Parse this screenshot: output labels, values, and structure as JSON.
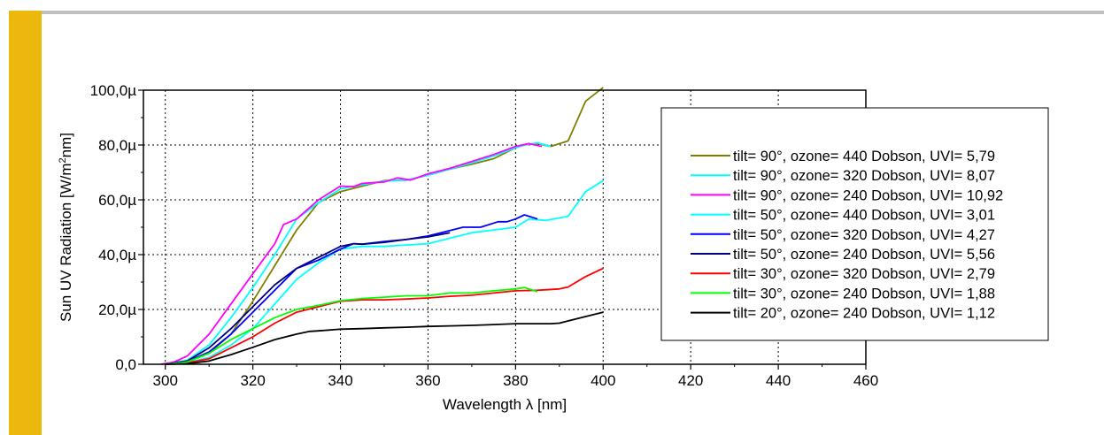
{
  "colors": {
    "accent_bar": "#EDB80C",
    "top_rule": "#BEBEBE"
  },
  "chart_data": {
    "type": "line",
    "xlabel": "Wavelength λ [nm]",
    "ylabel_prefix": "Sun UV Radiation [W/m",
    "ylabel_sup": "2",
    "ylabel_suffix": "nm]",
    "xlim": [
      295,
      460
    ],
    "ylim": [
      0,
      0.0001
    ],
    "xticks": [
      {
        "v": 300,
        "label": "300"
      },
      {
        "v": 320,
        "label": "320"
      },
      {
        "v": 340,
        "label": "340"
      },
      {
        "v": 360,
        "label": "360"
      },
      {
        "v": 380,
        "label": "380"
      },
      {
        "v": 400,
        "label": "400"
      },
      {
        "v": 420,
        "label": "420"
      },
      {
        "v": 440,
        "label": "440"
      },
      {
        "v": 460,
        "label": "460"
      }
    ],
    "yticks": [
      {
        "v": 0,
        "label": "0,0"
      },
      {
        "v": 2e-05,
        "label": "20,0µ"
      },
      {
        "v": 4e-05,
        "label": "40,0µ"
      },
      {
        "v": 6e-05,
        "label": "60,0µ"
      },
      {
        "v": 8e-05,
        "label": "80,0µ"
      },
      {
        "v": 0.0001,
        "label": "100,0µ"
      }
    ],
    "grid": true,
    "legend_position": "right",
    "series": [
      {
        "name": "tilt= 90°, ozone= 440 Dobson, UVI= 5,79",
        "color": "#808000",
        "x": [
          300,
          305,
          310,
          315,
          320,
          325,
          330,
          335,
          340,
          345,
          350,
          355,
          360,
          365,
          370,
          375,
          380,
          382,
          385,
          388,
          392,
          396,
          400
        ],
        "y": [
          0,
          8e-07,
          4e-06,
          1.1e-05,
          2.3e-05,
          3.6e-05,
          4.9e-05,
          5.9e-05,
          6.3e-05,
          6.5e-05,
          6.7e-05,
          6.72e-05,
          6.9e-05,
          7.12e-05,
          7.3e-05,
          7.5e-05,
          7.9e-05,
          8e-05,
          8.05e-05,
          7.95e-05,
          8.15e-05,
          9.6e-05,
          0.000101
        ]
      },
      {
        "name": "tilt= 90°, ozone= 320 Dobson, UVI= 8,07",
        "color": "#00FFFF",
        "x": [
          300,
          305,
          310,
          315,
          320,
          325,
          330,
          335,
          340,
          345,
          350,
          355,
          360,
          365,
          370,
          375,
          380,
          382,
          385,
          388
        ],
        "y": [
          0,
          1.5e-06,
          7e-06,
          1.7e-05,
          2.8e-05,
          4e-05,
          5.3e-05,
          5.9e-05,
          6.4e-05,
          6.55e-05,
          6.68e-05,
          6.72e-05,
          6.9e-05,
          7.12e-05,
          7.35e-05,
          7.6e-05,
          7.9e-05,
          8e-05,
          8.08e-05,
          7.95e-05
        ]
      },
      {
        "name": "tilt= 90°, ozone= 240 Dobson, UVI= 10,92",
        "color": "#FF00FF",
        "x": [
          299,
          302,
          305,
          310,
          315,
          320,
          325,
          327,
          330,
          335,
          340,
          343,
          345,
          350,
          353,
          356,
          360,
          365,
          370,
          375,
          380,
          383,
          386
        ],
        "y": [
          0,
          8e-07,
          3e-06,
          1.1e-05,
          2.2e-05,
          3.3e-05,
          4.4e-05,
          5.1e-05,
          5.3e-05,
          6e-05,
          6.5e-05,
          6.48e-05,
          6.6e-05,
          6.65e-05,
          6.8e-05,
          6.72e-05,
          6.95e-05,
          7.15e-05,
          7.4e-05,
          7.65e-05,
          7.95e-05,
          8.05e-05,
          7.95e-05
        ]
      },
      {
        "name": "tilt= 50°, ozone= 440 Dobson, UVI= 3,01",
        "color": "#00FFFF",
        "x": [
          300,
          305,
          310,
          315,
          320,
          325,
          330,
          335,
          340,
          345,
          350,
          355,
          360,
          365,
          370,
          375,
          380,
          383,
          387,
          392,
          396,
          400
        ],
        "y": [
          0,
          5e-07,
          2.5e-06,
          7e-06,
          1.3e-05,
          2.2e-05,
          3.1e-05,
          3.7e-05,
          4.2e-05,
          4.3e-05,
          4.3e-05,
          4.35e-05,
          4.4e-05,
          4.6e-05,
          4.8e-05,
          4.9e-05,
          5e-05,
          5.3e-05,
          5.25e-05,
          5.4e-05,
          6.3e-05,
          6.7e-05
        ]
      },
      {
        "name": "tilt= 50°, ozone= 320 Dobson, UVI= 4,27",
        "color": "#0000FF",
        "x": [
          300,
          305,
          310,
          315,
          320,
          325,
          330,
          335,
          340,
          343,
          345,
          350,
          355,
          360,
          365,
          368,
          372,
          376,
          378,
          380,
          382,
          385
        ],
        "y": [
          0,
          1e-06,
          4.5e-06,
          1.1e-05,
          1.9e-05,
          2.7e-05,
          3.5e-05,
          3.8e-05,
          4.2e-05,
          4.4e-05,
          4.38e-05,
          4.48e-05,
          4.55e-05,
          4.68e-05,
          4.88e-05,
          5e-05,
          5e-05,
          5.2e-05,
          5.2e-05,
          5.3e-05,
          5.45e-05,
          5.3e-05
        ]
      },
      {
        "name": "tilt= 50°, ozone= 240 Dobson, UVI= 5,56",
        "color": "#000080",
        "x": [
          300,
          305,
          310,
          315,
          320,
          325,
          330,
          335,
          340,
          343,
          345,
          350,
          355,
          360,
          365
        ],
        "y": [
          0,
          1.2e-06,
          6e-06,
          1.3e-05,
          2.1e-05,
          2.9e-05,
          3.5e-05,
          3.9e-05,
          4.3e-05,
          4.4e-05,
          4.38e-05,
          4.45e-05,
          4.55e-05,
          4.65e-05,
          4.8e-05
        ]
      },
      {
        "name": "tilt= 30°, ozone= 320 Dobson, UVI= 2,79",
        "color": "#FF0000",
        "x": [
          300,
          305,
          310,
          315,
          320,
          325,
          330,
          335,
          340,
          345,
          350,
          355,
          360,
          365,
          370,
          375,
          380,
          385,
          390,
          392,
          396,
          400
        ],
        "y": [
          0,
          5e-07,
          2e-06,
          6e-06,
          1e-05,
          1.5e-05,
          1.9e-05,
          2.1e-05,
          2.3e-05,
          2.35e-05,
          2.35e-05,
          2.38e-05,
          2.42e-05,
          2.48e-05,
          2.52e-05,
          2.6e-05,
          2.68e-05,
          2.7e-05,
          2.75e-05,
          2.82e-05,
          3.2e-05,
          3.5e-05
        ]
      },
      {
        "name": "tilt= 30°, ozone= 240 Dobson, UVI= 1,88",
        "color": "#00FF00",
        "x": [
          300,
          305,
          310,
          315,
          320,
          325,
          330,
          335,
          340,
          345,
          350,
          355,
          360,
          365,
          370,
          375,
          380,
          382,
          385
        ],
        "y": [
          0,
          8e-07,
          4e-06,
          9e-06,
          1.3e-05,
          1.7e-05,
          2e-05,
          2.15e-05,
          2.32e-05,
          2.4e-05,
          2.45e-05,
          2.5e-05,
          2.5e-05,
          2.6e-05,
          2.6e-05,
          2.68e-05,
          2.75e-05,
          2.8e-05,
          2.65e-05
        ]
      },
      {
        "name": "tilt= 20°, ozone= 240 Dobson, UVI= 1,12",
        "color": "#000000",
        "x": [
          300,
          305,
          310,
          315,
          320,
          325,
          330,
          333,
          335,
          340,
          345,
          350,
          355,
          360,
          365,
          370,
          375,
          380,
          385,
          388,
          390,
          395,
          400
        ],
        "y": [
          0,
          2e-07,
          1.2e-06,
          3.5e-06,
          6.2e-06,
          9e-06,
          1.1e-05,
          1.2e-05,
          1.22e-05,
          1.28e-05,
          1.3e-05,
          1.33e-05,
          1.35e-05,
          1.38e-05,
          1.4e-05,
          1.42e-05,
          1.45e-05,
          1.48e-05,
          1.48e-05,
          1.48e-05,
          1.5e-05,
          1.7e-05,
          1.9e-05
        ]
      }
    ]
  }
}
